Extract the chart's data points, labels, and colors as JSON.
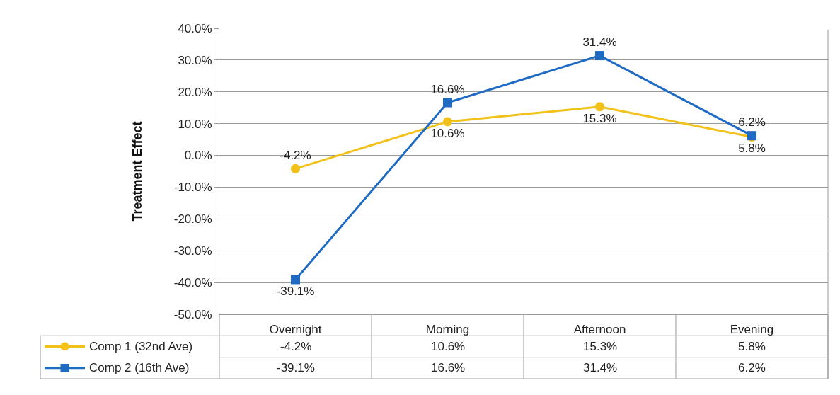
{
  "chart_data": {
    "type": "line",
    "ylabel": "Treatment Effect",
    "categories": [
      "Overnight",
      "Morning",
      "Afternoon",
      "Evening"
    ],
    "series": [
      {
        "name": "Comp 1 (32nd Ave)",
        "color": "#f2c21b",
        "marker": "circle",
        "values": [
          -4.2,
          10.6,
          15.3,
          5.8
        ],
        "value_labels": [
          "-4.2%",
          "10.6%",
          "15.3%",
          "5.8%"
        ]
      },
      {
        "name": "Comp 2 (16th Ave)",
        "color": "#1f6bc4",
        "marker": "square",
        "values": [
          -39.1,
          16.6,
          31.4,
          6.2
        ],
        "value_labels": [
          "-39.1%",
          "16.6%",
          "31.4%",
          "6.2%"
        ]
      }
    ],
    "ylim": [
      -50,
      40
    ],
    "yticks": [
      {
        "value": -50,
        "label": "-50.0%"
      },
      {
        "value": -40,
        "label": "-40.0%"
      },
      {
        "value": -30,
        "label": "-30.0%"
      },
      {
        "value": -20,
        "label": "-20.0%"
      },
      {
        "value": -10,
        "label": "-10.0%"
      },
      {
        "value": 0,
        "label": "0.0%"
      },
      {
        "value": 10,
        "label": "10.0%"
      },
      {
        "value": 20,
        "label": "20.0%"
      },
      {
        "value": 30,
        "label": "30.0%"
      },
      {
        "value": 40,
        "label": "40.0%"
      }
    ],
    "grid": "y",
    "legend": "bottom left",
    "line_style": "solid"
  }
}
